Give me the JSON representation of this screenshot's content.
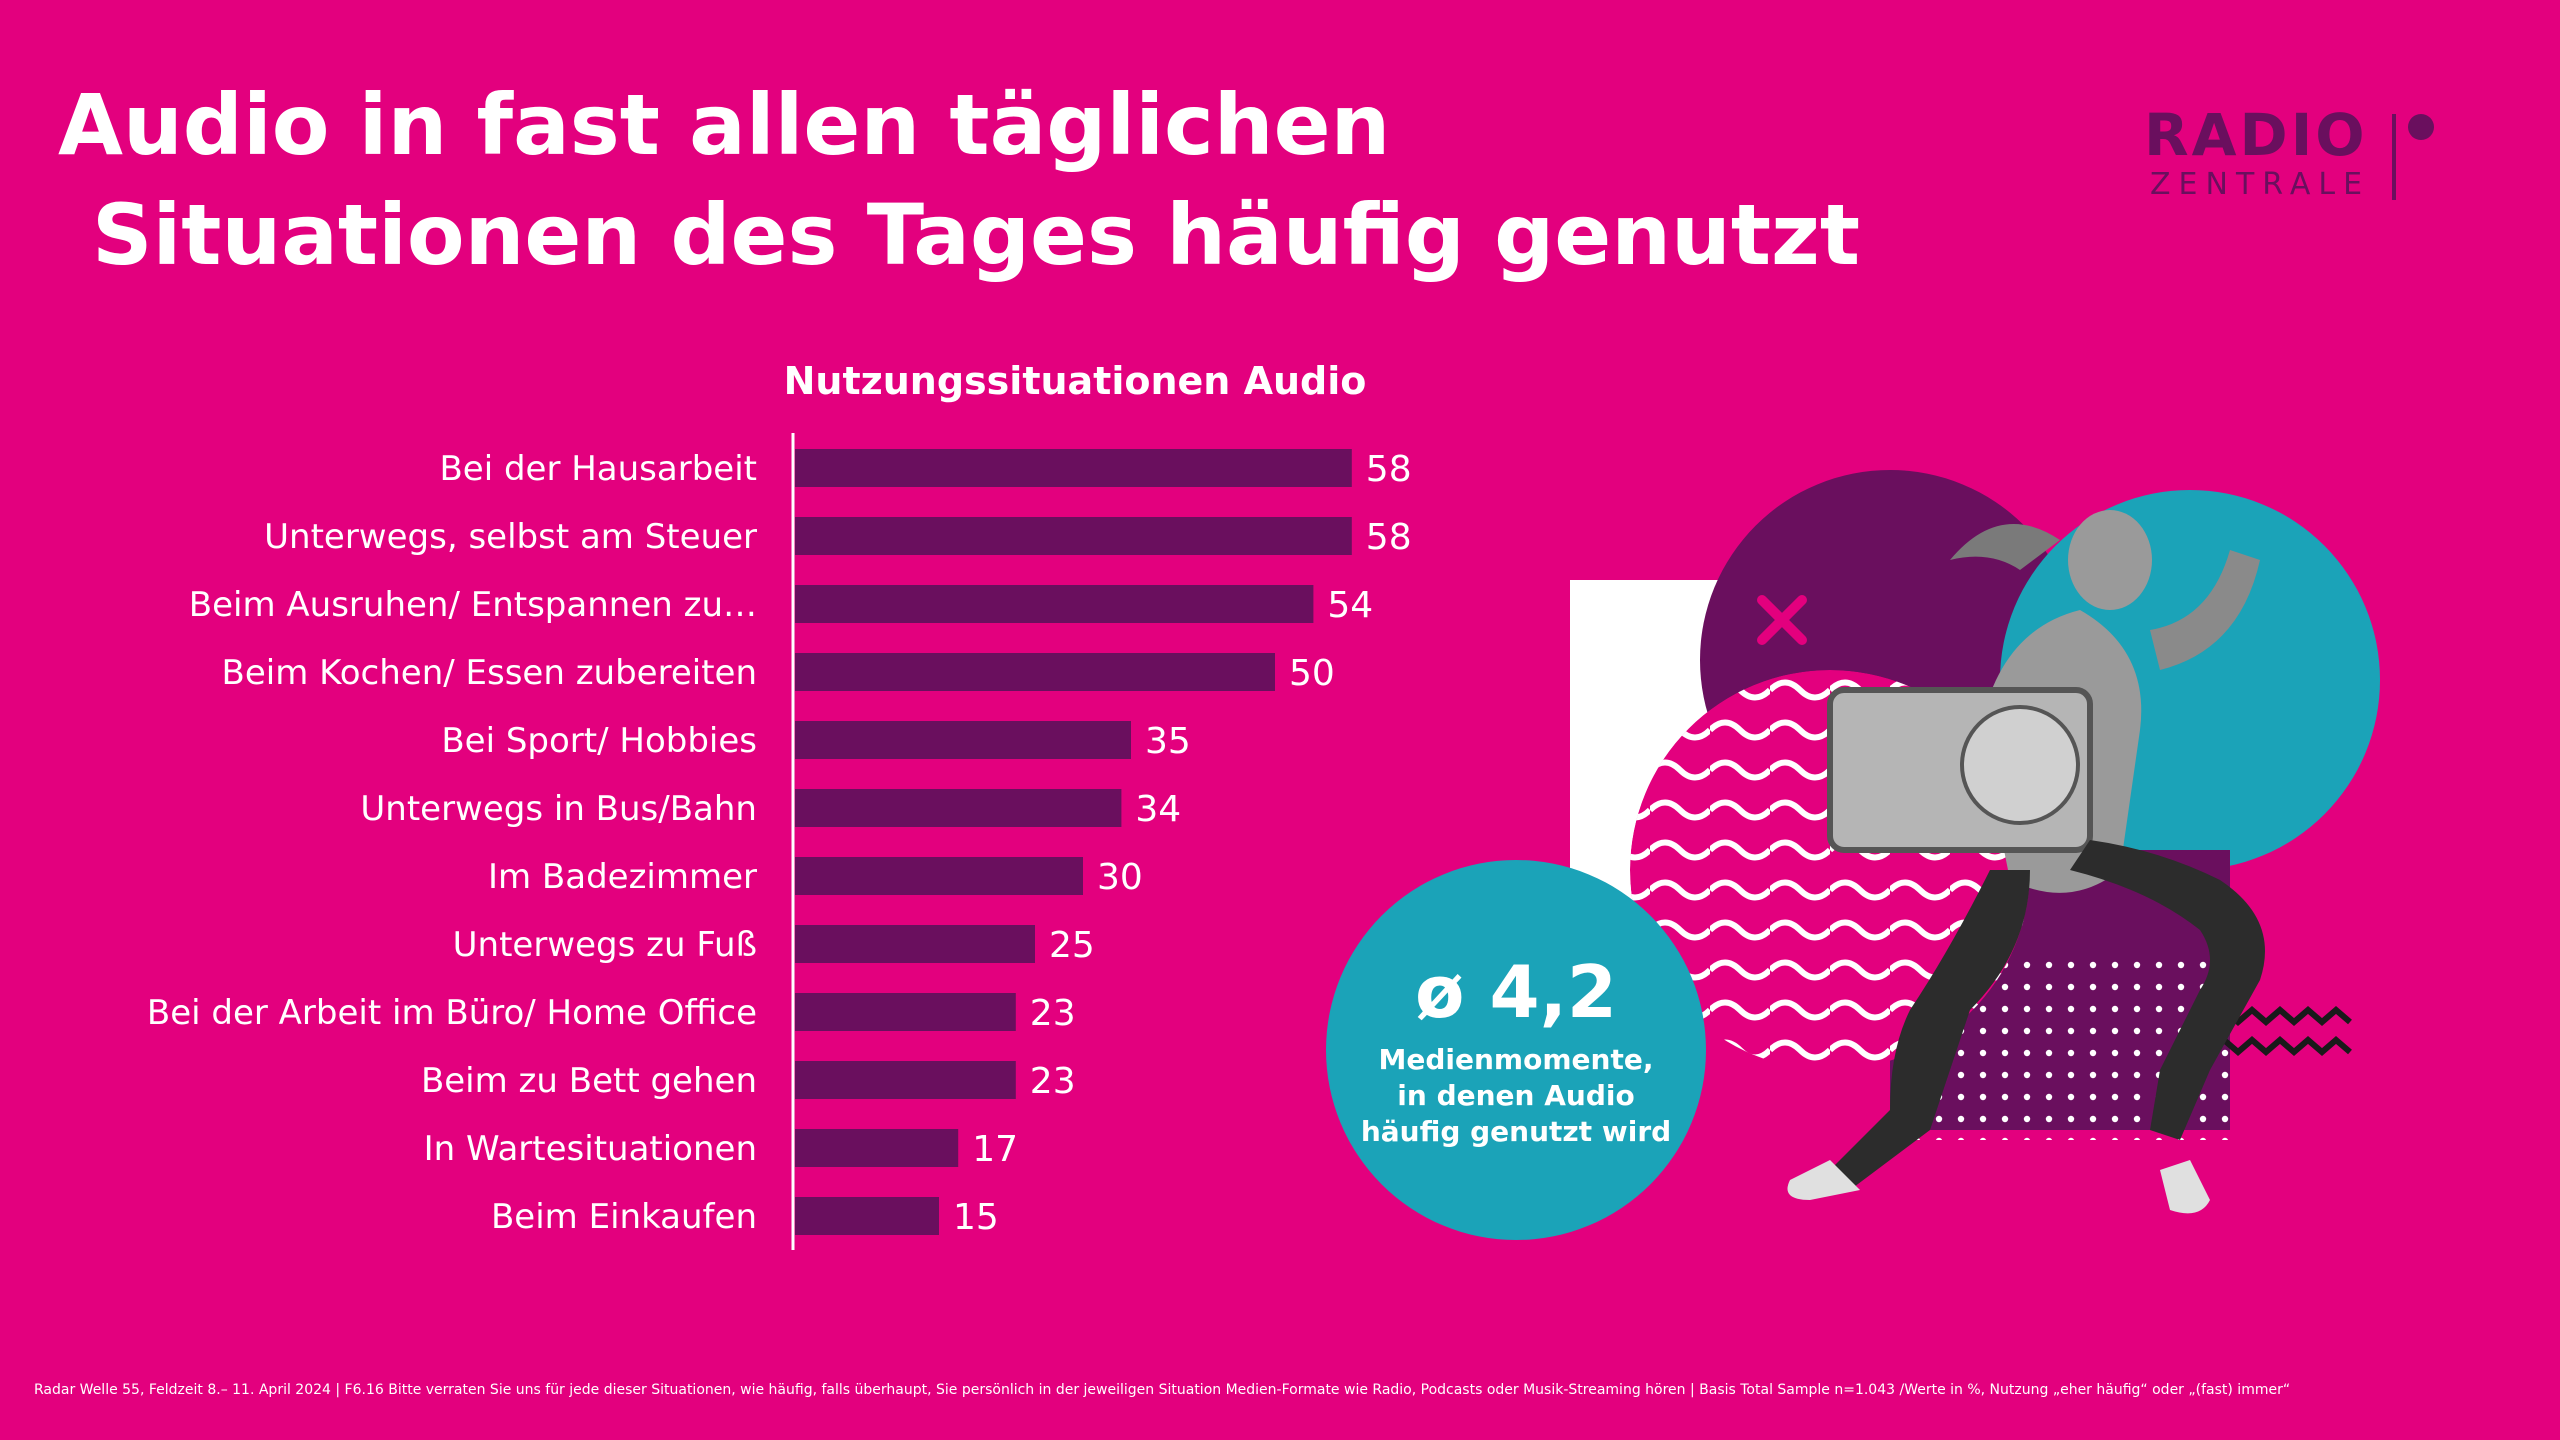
{
  "header": {
    "title_line1": "Audio in fast allen täglichen",
    "title_line2": "Situationen des Tages häufig genutzt"
  },
  "logo": {
    "line1": "RADIO",
    "line2": "ZENTRALE"
  },
  "badge": {
    "value": "ø 4,2",
    "caption": "Medienmomente,\nin denen Audio\nhäufig genutzt wird"
  },
  "footnote": "Radar Welle 55, Feldzeit 8.– 11. April 2024 | F6.16 Bitte verraten Sie uns für jede dieser Situationen, wie häufig, falls überhaupt, Sie persönlich in der jeweiligen Situation Medien-Formate wie Radio, Podcasts oder Musik-Streaming hören | Basis Total Sample n=1.043 /Werte in %, Nutzung „eher häufig“ oder „(fast) immer“",
  "colors": {
    "background": "#e3007e",
    "bar": "#6a0f5e",
    "text": "#ffffff",
    "accent_teal": "#1ba3b8"
  },
  "chart_data": {
    "type": "bar",
    "orientation": "horizontal",
    "title": "Nutzungssituationen Audio",
    "categories": [
      "Bei der Hausarbeit",
      "Unterwegs, selbst am Steuer",
      "Beim Ausruhen/ Entspannen zu…",
      "Beim Kochen/ Essen zubereiten",
      "Bei Sport/ Hobbies",
      "Unterwegs in Bus/Bahn",
      "Im Badezimmer",
      "Unterwegs zu Fuß",
      "Bei der Arbeit im Büro/ Home Office",
      "Beim zu Bett gehen",
      "In Wartesituationen",
      "Beim Einkaufen"
    ],
    "values": [
      58,
      58,
      54,
      50,
      35,
      34,
      30,
      25,
      23,
      23,
      17,
      15
    ],
    "xlim": [
      0,
      100
    ],
    "grid": false,
    "legend": "none"
  }
}
